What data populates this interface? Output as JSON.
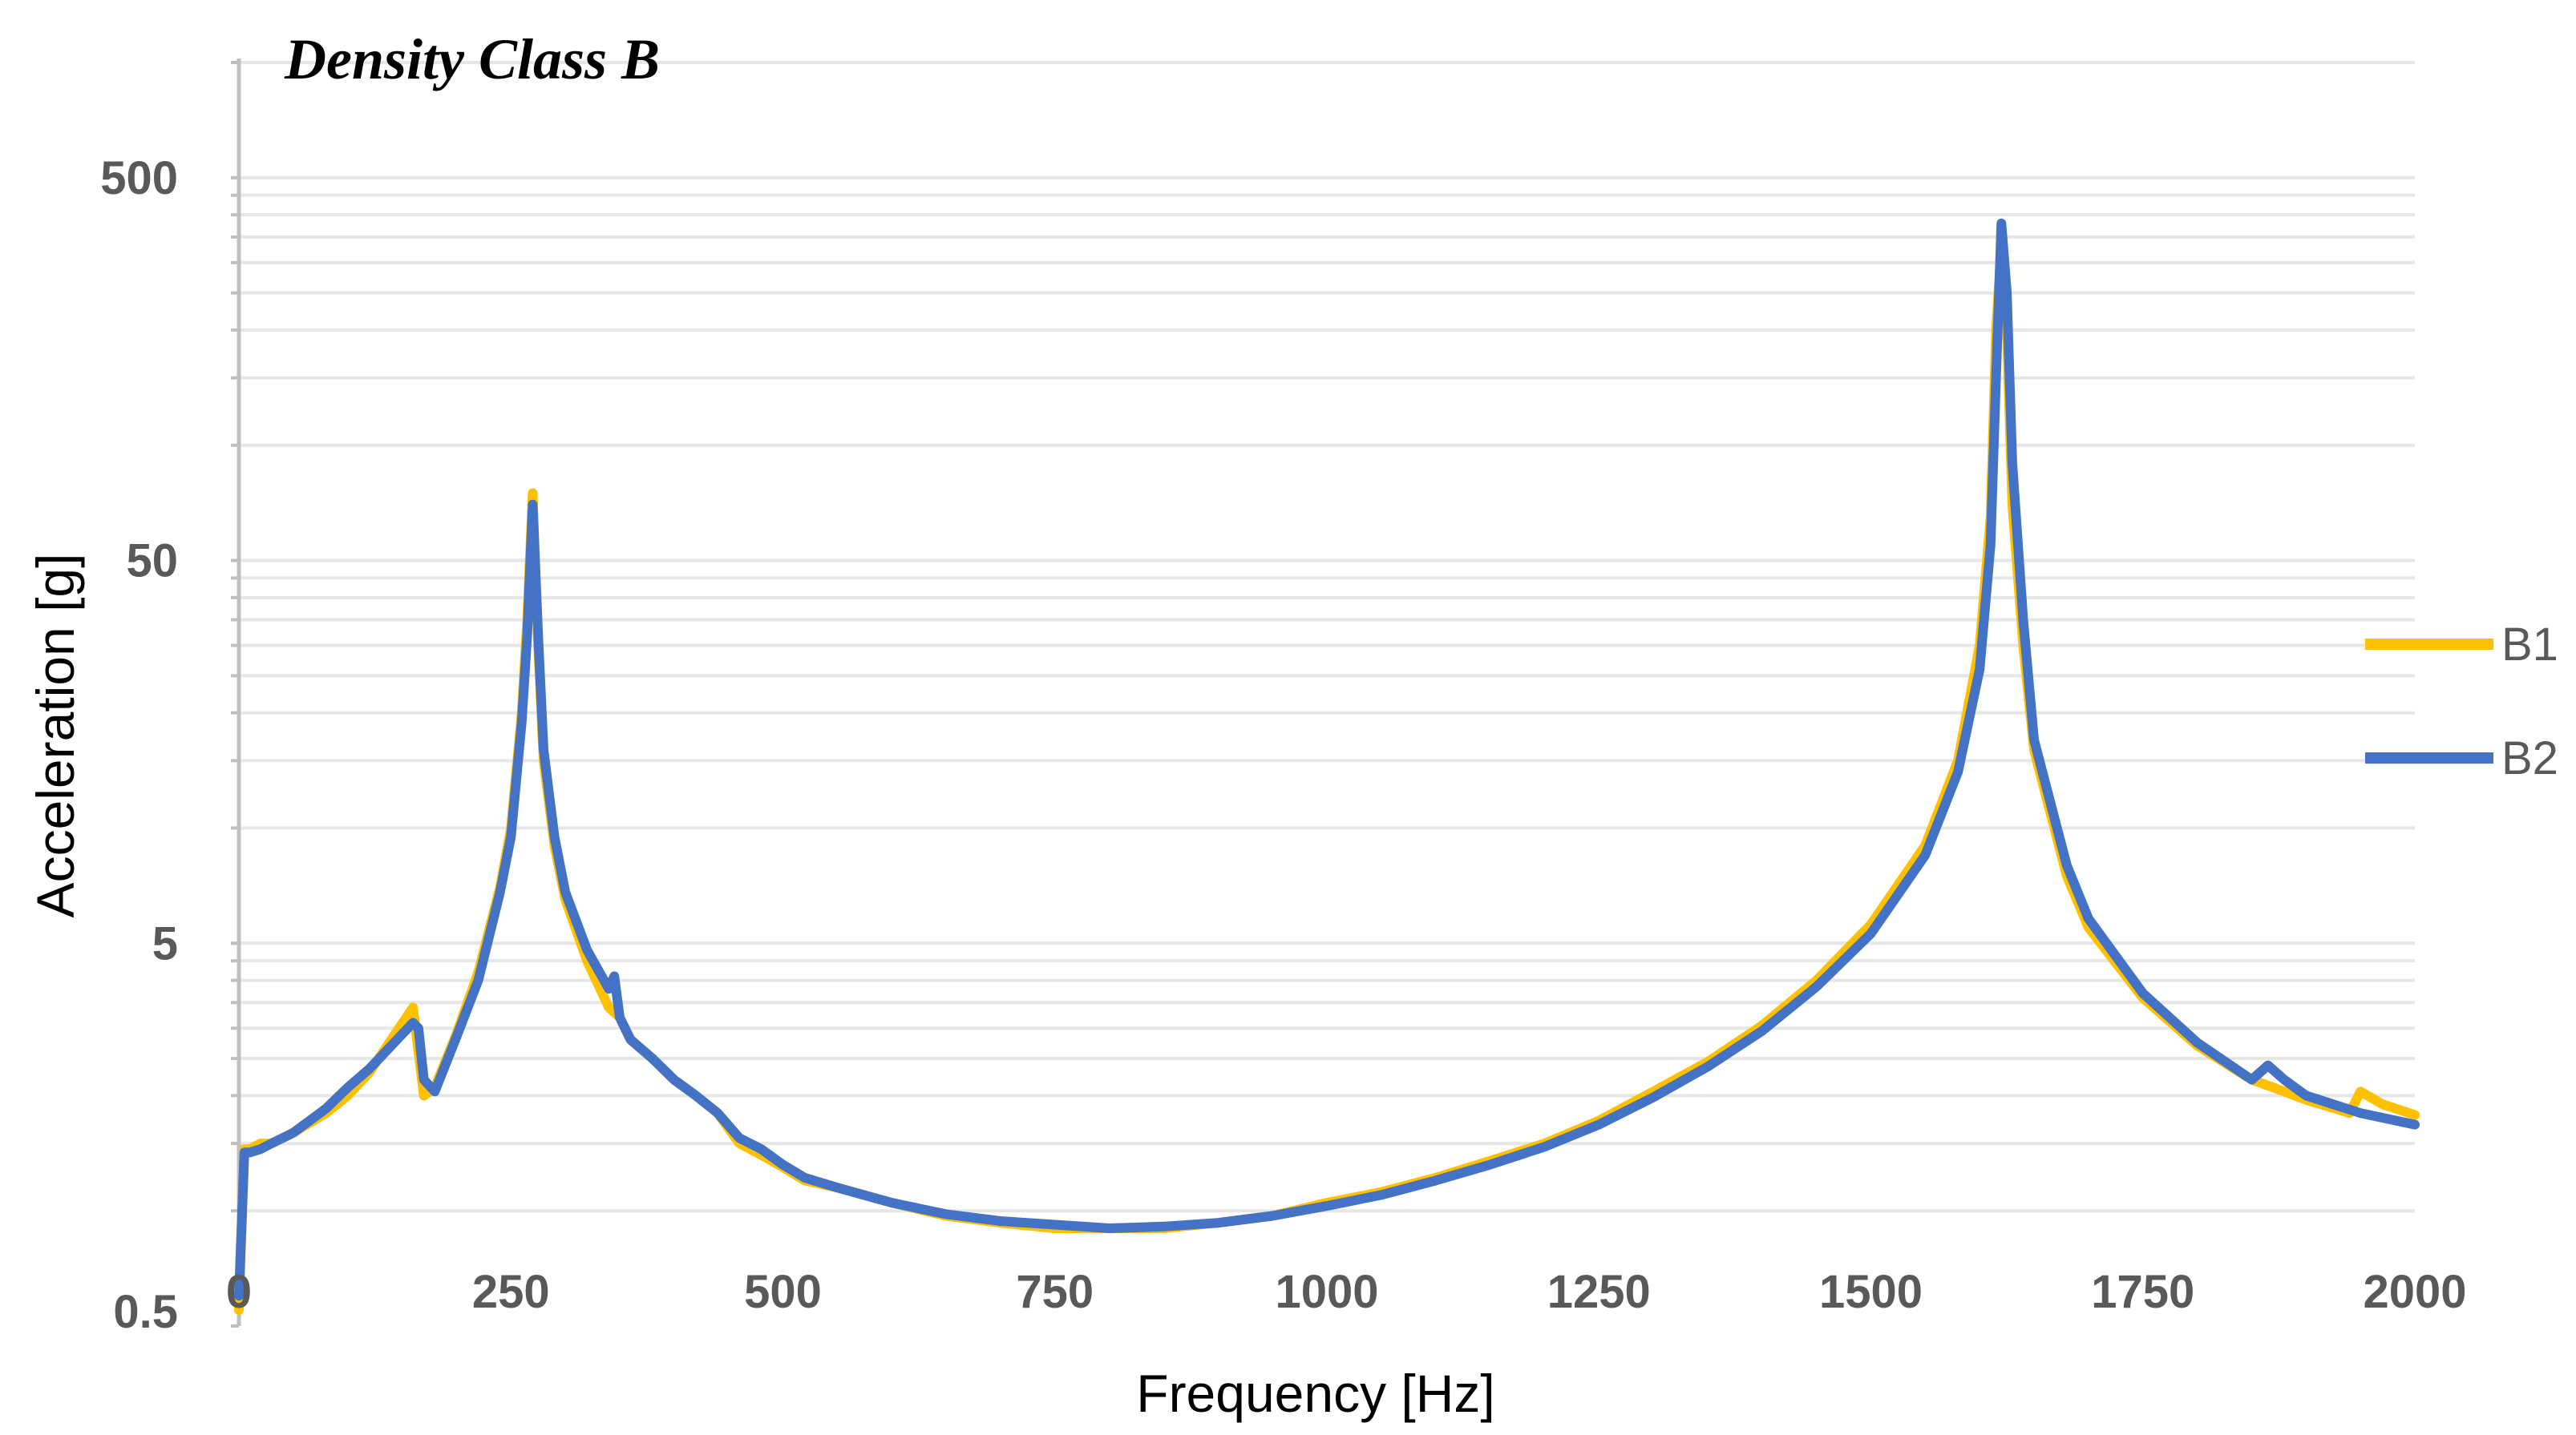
{
  "chart_data": {
    "type": "line",
    "title": "Density Class B",
    "xlabel": "Frequency [Hz]",
    "ylabel": "Acceleration [g]",
    "xlim": [
      0,
      2000
    ],
    "ylim": [
      0.5,
      1000
    ],
    "y_scale": "log",
    "x_ticks": [
      0,
      250,
      500,
      750,
      1000,
      1250,
      1500,
      1750,
      2000
    ],
    "y_ticks": [
      0.5,
      5,
      50,
      500
    ],
    "grid": true,
    "legend_position": "right",
    "series": [
      {
        "name": "B1",
        "color": "#FFC000",
        "x": [
          0,
          5,
          10,
          20,
          30,
          50,
          80,
          100,
          120,
          140,
          160,
          165,
          170,
          180,
          200,
          220,
          240,
          250,
          260,
          265,
          270,
          275,
          280,
          290,
          300,
          320,
          340,
          350,
          360,
          380,
          400,
          420,
          440,
          460,
          480,
          500,
          520,
          550,
          600,
          650,
          700,
          750,
          800,
          850,
          900,
          950,
          1000,
          1050,
          1100,
          1150,
          1200,
          1250,
          1300,
          1350,
          1400,
          1450,
          1500,
          1550,
          1580,
          1600,
          1610,
          1615,
          1620,
          1625,
          1630,
          1640,
          1650,
          1680,
          1700,
          1750,
          1800,
          1850,
          1870,
          1900,
          1940,
          1950,
          1970,
          2000
        ],
        "values": [
          0.55,
          1.45,
          1.45,
          1.5,
          1.5,
          1.6,
          1.8,
          2.0,
          2.3,
          2.8,
          3.4,
          2.6,
          2.0,
          2.1,
          2.9,
          4.2,
          7.0,
          10,
          20,
          35,
          75,
          30,
          15,
          9,
          6.5,
          4.5,
          3.4,
          3.2,
          2.8,
          2.5,
          2.2,
          2.0,
          1.8,
          1.5,
          1.4,
          1.3,
          1.2,
          1.15,
          1.05,
          0.97,
          0.93,
          0.9,
          0.9,
          0.9,
          0.93,
          0.97,
          1.05,
          1.12,
          1.22,
          1.35,
          1.5,
          1.72,
          2.05,
          2.45,
          3.05,
          4.0,
          5.6,
          9.0,
          15,
          30,
          65,
          200,
          330,
          200,
          70,
          30,
          16,
          7.5,
          5.5,
          3.6,
          2.7,
          2.2,
          2.1,
          1.95,
          1.8,
          2.05,
          1.9,
          1.78
        ]
      },
      {
        "name": "B2",
        "color": "#4472C4",
        "x": [
          0,
          5,
          10,
          20,
          30,
          50,
          80,
          100,
          120,
          140,
          160,
          165,
          170,
          180,
          200,
          220,
          240,
          250,
          260,
          265,
          270,
          275,
          280,
          290,
          300,
          320,
          340,
          345,
          350,
          360,
          380,
          400,
          420,
          440,
          460,
          480,
          500,
          520,
          550,
          600,
          650,
          700,
          750,
          800,
          850,
          900,
          950,
          1000,
          1050,
          1100,
          1150,
          1200,
          1250,
          1300,
          1350,
          1400,
          1450,
          1500,
          1550,
          1580,
          1600,
          1610,
          1615,
          1620,
          1625,
          1630,
          1640,
          1650,
          1680,
          1700,
          1750,
          1800,
          1850,
          1865,
          1880,
          1900,
          1950,
          2000
        ],
        "values": [
          0.6,
          1.42,
          1.42,
          1.45,
          1.5,
          1.6,
          1.85,
          2.1,
          2.35,
          2.7,
          3.1,
          3.0,
          2.2,
          2.05,
          2.85,
          4.0,
          6.8,
          9.5,
          19,
          32,
          70,
          32,
          16,
          9.5,
          6.8,
          4.8,
          3.8,
          4.1,
          3.2,
          2.8,
          2.5,
          2.2,
          2.0,
          1.8,
          1.55,
          1.45,
          1.32,
          1.22,
          1.15,
          1.05,
          0.98,
          0.94,
          0.92,
          0.9,
          0.91,
          0.93,
          0.97,
          1.03,
          1.1,
          1.2,
          1.32,
          1.47,
          1.68,
          1.98,
          2.38,
          2.95,
          3.85,
          5.3,
          8.5,
          14,
          26,
          55,
          150,
          380,
          250,
          90,
          35,
          17,
          8.0,
          5.8,
          3.7,
          2.75,
          2.2,
          2.4,
          2.2,
          2.0,
          1.8,
          1.68
        ]
      }
    ]
  }
}
